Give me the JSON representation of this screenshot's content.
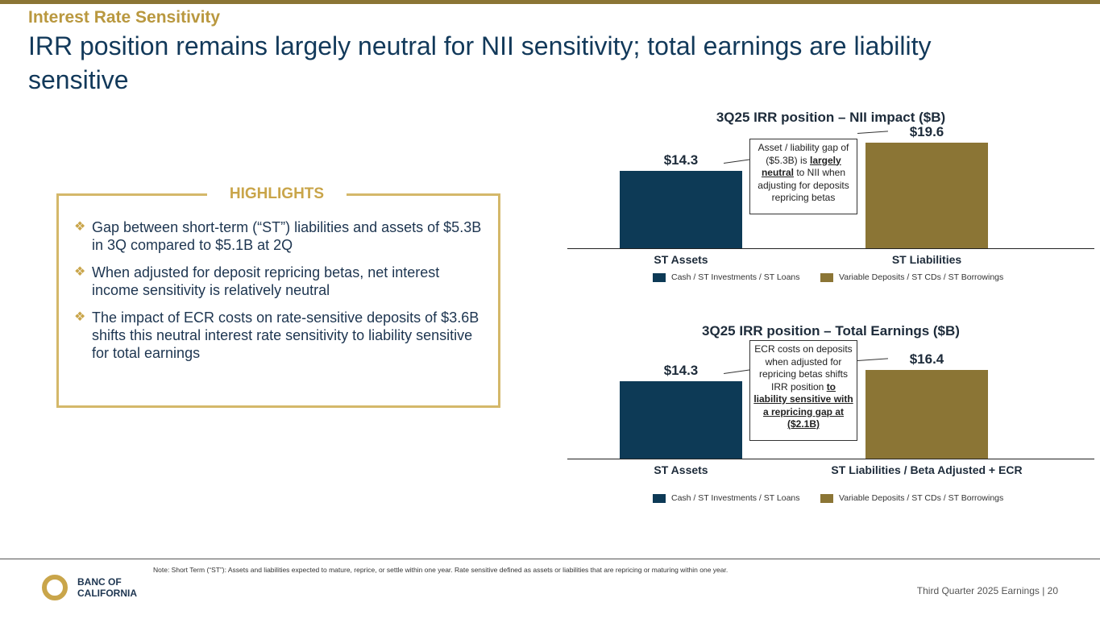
{
  "header": {
    "kicker": "Interest Rate Sensitivity",
    "title": "IRR position remains largely neutral for NII sensitivity; total earnings are liability sensitive"
  },
  "highlights": {
    "label": "HIGHLIGHTS",
    "bullets": [
      "Gap between short-term (“ST”) liabilities and assets of $5.3B in 3Q compared to $5.1B at 2Q",
      "When adjusted for deposit repricing betas, net interest income sensitivity is relatively neutral",
      "The impact of ECR costs on rate-sensitive deposits of $3.6B shifts this neutral interest rate sensitivity to liability sensitive for total earnings"
    ]
  },
  "colors": {
    "assets": "#0d3a56",
    "liabilities": "#8b7535",
    "accent": "#c9a54a"
  },
  "chart_data": [
    {
      "type": "bar",
      "title": "3Q25 IRR position – NII impact ($B)",
      "categories": [
        "ST Assets",
        "ST Liabilities"
      ],
      "values": [
        14.3,
        19.6
      ],
      "labels": [
        "$14.3",
        "$19.6"
      ],
      "legend": [
        "Cash / ST Investments / ST Loans",
        "Variable Deposits / ST CDs / ST Borrowings"
      ],
      "callout": {
        "pre": "Asset / liability gap of ($5.3B) is ",
        "bold": "largely neutral",
        "post": " to NII when adjusting for deposits repricing betas"
      }
    },
    {
      "type": "bar",
      "title": "3Q25 IRR position – Total Earnings ($B)",
      "categories": [
        "ST Assets",
        "ST Liabilities /  Beta Adjusted + ECR"
      ],
      "values": [
        14.3,
        16.4
      ],
      "labels": [
        "$14.3",
        "$16.4"
      ],
      "legend": [
        "Cash / ST Investments / ST Loans",
        "Variable Deposits / ST CDs / ST Borrowings"
      ],
      "callout": {
        "pre": "ECR costs on deposits when adjusted for repricing betas shifts IRR position ",
        "bold": "to liability sensitive with a repricing gap at ($2.1B)",
        "post": ""
      }
    }
  ],
  "footer": {
    "note": "Note: Short Term (“ST”): Assets and liabilities expected to mature, reprice, or settle within one year. Rate sensitive defined as assets or liabilities that are repricing or maturing within one year.",
    "logo": "BANC OF CALIFORNIA",
    "logo_line1": "BANC OF",
    "logo_line2": "CALIFORNIA",
    "page": "Third Quarter 2025 Earnings |  20"
  }
}
